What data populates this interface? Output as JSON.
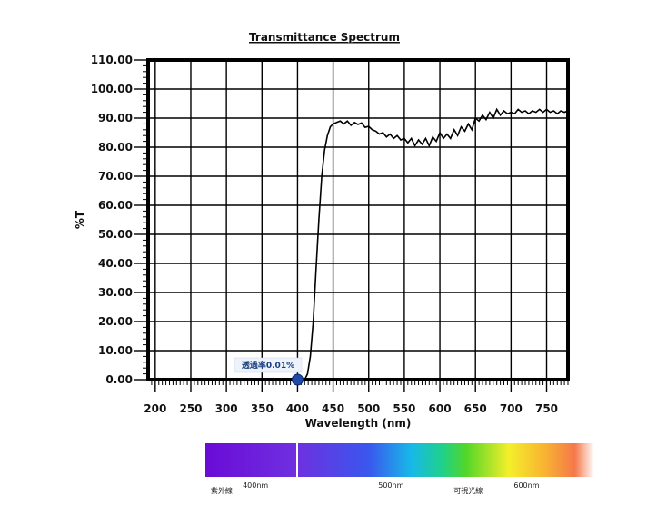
{
  "chart_data": {
    "type": "line",
    "title": "Transmittance Spectrum",
    "xlabel": "Wavelength (nm)",
    "ylabel": "%T",
    "xlim": [
      190,
      780
    ],
    "ylim": [
      0,
      110
    ],
    "grid": true,
    "x_ticks": [
      200,
      250,
      300,
      350,
      400,
      450,
      500,
      550,
      600,
      650,
      700,
      750
    ],
    "y_ticks": [
      "0.00",
      "10.00",
      "20.00",
      "30.00",
      "40.00",
      "50.00",
      "60.00",
      "70.00",
      "80.00",
      "90.00",
      "100.00",
      "110.00"
    ],
    "series": [
      {
        "color": "#000000",
        "x": [
          410,
          414,
          418,
          422,
          426,
          430,
          434,
          438,
          442,
          446,
          450,
          455,
          460,
          465,
          470,
          475,
          480,
          485,
          490,
          495,
          500,
          505,
          510,
          515,
          520,
          525,
          530,
          535,
          540,
          545,
          550,
          555,
          560,
          565,
          570,
          575,
          580,
          585,
          590,
          595,
          600,
          605,
          610,
          615,
          620,
          625,
          630,
          635,
          640,
          645,
          650,
          655,
          660,
          665,
          670,
          675,
          680,
          685,
          690,
          695,
          700,
          705,
          710,
          715,
          720,
          725,
          730,
          735,
          740,
          745,
          750,
          755,
          760,
          765,
          770,
          775,
          780
        ],
        "y": [
          0.01,
          2,
          8,
          20,
          38,
          55,
          70,
          79,
          84,
          87,
          88,
          88.5,
          89,
          88,
          89,
          87.5,
          88.5,
          87.8,
          88.3,
          86.8,
          87.2,
          86,
          85.5,
          84.5,
          85,
          83.5,
          84.5,
          83,
          84,
          82.5,
          83,
          81.5,
          83,
          80.5,
          82.5,
          81,
          83,
          80.5,
          83.5,
          82,
          85,
          83,
          84.5,
          83,
          86,
          84,
          87,
          85.5,
          88,
          86,
          90,
          89,
          91,
          89.5,
          92,
          90,
          93,
          91,
          92.5,
          91.5,
          92,
          91.5,
          93,
          92,
          92.5,
          91.5,
          92.5,
          92,
          93,
          92,
          93,
          92,
          92.5,
          91.5,
          92.5,
          92,
          92.5
        ]
      }
    ],
    "annotation": {
      "label": "透過率0.01%",
      "x": 400,
      "y": 0.01
    },
    "spectrum_bar": {
      "range_nm": [
        363,
        650
      ],
      "labels": [
        {
          "text": "紫外線",
          "nm": 375
        },
        {
          "text": "400nm",
          "nm": 400
        },
        {
          "text": "500nm",
          "nm": 500
        },
        {
          "text": "可視光線",
          "nm": 557
        },
        {
          "text": "600nm",
          "nm": 600
        }
      ]
    }
  }
}
